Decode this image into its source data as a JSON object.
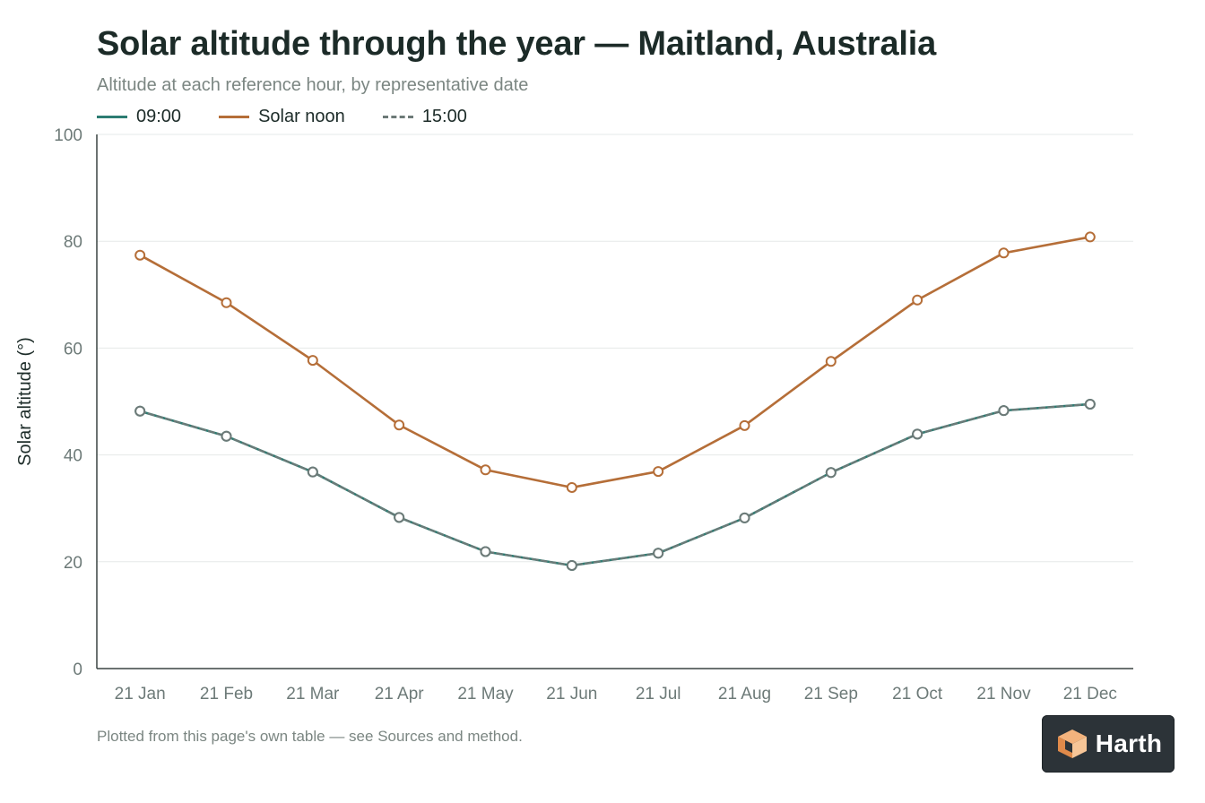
{
  "title": "Solar altitude through the year — Maitland, Australia",
  "subtitle": "Altitude at each reference hour, by representative date",
  "footer": "Plotted from this page's own table — see Sources and method.",
  "brand": {
    "name": "Harth"
  },
  "colors": {
    "series_0900": "#2c7c72",
    "series_noon": "#b56e38",
    "series_1500": "#6d7a78",
    "grid": "#e6e9e8",
    "axis": "#3a4442",
    "tick_text": "#6d7a78"
  },
  "chart_data": {
    "type": "line",
    "ylabel": "Solar altitude (°)",
    "xlabel": "",
    "ylim": [
      0,
      100
    ],
    "yticks": [
      0,
      20,
      40,
      60,
      80,
      100
    ],
    "grid": true,
    "legend_position": "top-left",
    "categories": [
      "21 Jan",
      "21 Feb",
      "21 Mar",
      "21 Apr",
      "21 May",
      "21 Jun",
      "21 Jul",
      "21 Aug",
      "21 Sep",
      "21 Oct",
      "21 Nov",
      "21 Dec"
    ],
    "series": [
      {
        "name": "09:00",
        "style": "solid",
        "values": [
          48.2,
          43.5,
          36.8,
          28.3,
          21.9,
          19.3,
          21.6,
          28.2,
          36.7,
          43.9,
          48.3,
          49.5
        ]
      },
      {
        "name": "Solar noon",
        "style": "solid",
        "values": [
          77.4,
          68.5,
          57.7,
          45.6,
          37.2,
          33.9,
          36.9,
          45.5,
          57.5,
          69.0,
          77.8,
          80.8
        ]
      },
      {
        "name": "15:00",
        "style": "dashed",
        "values": [
          48.2,
          43.5,
          36.8,
          28.3,
          21.9,
          19.3,
          21.6,
          28.2,
          36.7,
          43.9,
          48.3,
          49.5
        ]
      }
    ]
  }
}
